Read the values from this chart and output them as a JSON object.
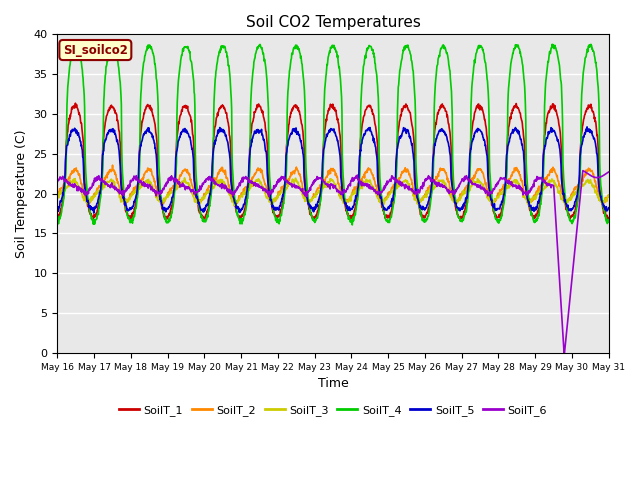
{
  "title": "Soil CO2 Temperatures",
  "xlabel": "Time",
  "ylabel": "Soil Temperature (C)",
  "annotation": "SI_soilco2",
  "ylim": [
    0,
    40
  ],
  "xlim_start": 16,
  "xlim_end": 31,
  "xtick_labels": [
    "May 16",
    "May 17",
    "May 18",
    "May 19",
    "May 20",
    "May 21",
    "May 22",
    "May 23",
    "May 24",
    "May 25",
    "May 26",
    "May 27",
    "May 28",
    "May 29",
    "May 30",
    "May 31"
  ],
  "series_order": [
    "SoilT_1",
    "SoilT_2",
    "SoilT_3",
    "SoilT_4",
    "SoilT_5",
    "SoilT_6"
  ],
  "series": {
    "SoilT_1": {
      "color": "#cc0000",
      "lw": 1.2
    },
    "SoilT_2": {
      "color": "#ff8800",
      "lw": 1.2
    },
    "SoilT_3": {
      "color": "#cccc00",
      "lw": 1.2
    },
    "SoilT_4": {
      "color": "#00cc00",
      "lw": 1.2
    },
    "SoilT_5": {
      "color": "#0000cc",
      "lw": 1.2
    },
    "SoilT_6": {
      "color": "#9900cc",
      "lw": 1.2
    }
  },
  "bg_color": "#e8e8e8",
  "grid_color": "white",
  "yticks": [
    0,
    5,
    10,
    15,
    20,
    25,
    30,
    35,
    40
  ]
}
